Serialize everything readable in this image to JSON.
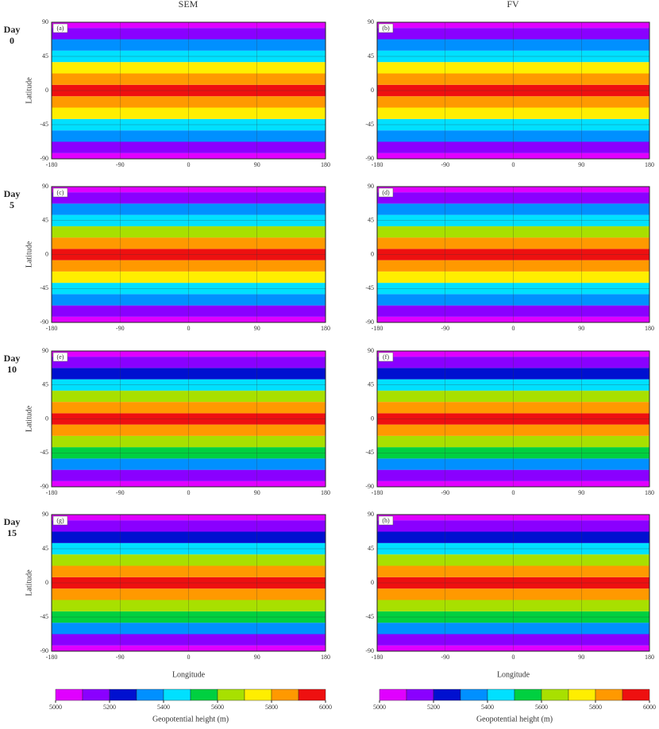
{
  "column_titles": [
    "SEM",
    "FV"
  ],
  "row_labels": [
    "Day 0",
    "Day 5",
    "Day 10",
    "Day 15"
  ],
  "chart_data": [
    {
      "type": "heatmap",
      "panel_label": "(a)",
      "ylabel": "Latitude",
      "y": [
        -90,
        -75,
        -60,
        -45,
        -30,
        -15,
        0,
        15,
        30,
        45,
        60,
        75,
        90
      ],
      "values": [
        5020,
        5120,
        5300,
        5480,
        5700,
        5880,
        5960,
        5880,
        5700,
        5480,
        5300,
        5120,
        5020
      ],
      "xlim": [
        -180,
        180
      ],
      "ylim": [
        -90,
        90
      ],
      "xticks": [
        -180,
        -90,
        0,
        90,
        180
      ],
      "yticks": [
        90,
        45,
        0,
        -45,
        -90
      ],
      "grid": true
    },
    {
      "type": "heatmap",
      "panel_label": "(b)",
      "y": [
        -90,
        -75,
        -60,
        -45,
        -30,
        -15,
        0,
        15,
        30,
        45,
        60,
        75,
        90
      ],
      "values": [
        5020,
        5120,
        5300,
        5480,
        5700,
        5880,
        5960,
        5880,
        5700,
        5480,
        5300,
        5120,
        5020
      ],
      "xlim": [
        -180,
        180
      ],
      "ylim": [
        -90,
        90
      ],
      "xticks": [
        -180,
        -90,
        0,
        90,
        180
      ],
      "yticks": [
        90,
        45,
        0,
        -45,
        -90
      ],
      "grid": true
    },
    {
      "type": "heatmap",
      "panel_label": "(c)",
      "ylabel": "Latitude",
      "y": [
        -90,
        -75,
        -60,
        -45,
        -30,
        -15,
        0,
        15,
        30,
        45,
        60,
        75,
        90
      ],
      "values": [
        5020,
        5130,
        5310,
        5490,
        5700,
        5870,
        5950,
        5870,
        5690,
        5480,
        5300,
        5130,
        5020
      ],
      "xlim": [
        -180,
        180
      ],
      "ylim": [
        -90,
        90
      ],
      "xticks": [
        -180,
        -90,
        0,
        90,
        180
      ],
      "yticks": [
        90,
        45,
        0,
        -45,
        -90
      ],
      "grid": true
    },
    {
      "type": "heatmap",
      "panel_label": "(d)",
      "y": [
        -90,
        -75,
        -60,
        -45,
        -30,
        -15,
        0,
        15,
        30,
        45,
        60,
        75,
        90
      ],
      "values": [
        5020,
        5130,
        5310,
        5490,
        5700,
        5870,
        5950,
        5870,
        5690,
        5480,
        5300,
        5130,
        5020
      ],
      "xlim": [
        -180,
        180
      ],
      "ylim": [
        -90,
        90
      ],
      "xticks": [
        -180,
        -90,
        0,
        90,
        180
      ],
      "yticks": [
        90,
        45,
        0,
        -45,
        -90
      ],
      "grid": true
    },
    {
      "type": "heatmap",
      "panel_label": "(e)",
      "ylabel": "Latitude",
      "y": [
        -90,
        -75,
        -60,
        -45,
        -30,
        -15,
        0,
        15,
        30,
        45,
        60,
        75,
        90
      ],
      "values": [
        5030,
        5140,
        5320,
        5500,
        5690,
        5860,
        5940,
        5860,
        5680,
        5470,
        5290,
        5140,
        5030
      ],
      "xlim": [
        -180,
        180
      ],
      "ylim": [
        -90,
        90
      ],
      "xticks": [
        -180,
        -90,
        0,
        90,
        180
      ],
      "yticks": [
        90,
        45,
        0,
        -45,
        -90
      ],
      "grid": true
    },
    {
      "type": "heatmap",
      "panel_label": "(f)",
      "y": [
        -90,
        -75,
        -60,
        -45,
        -30,
        -15,
        0,
        15,
        30,
        45,
        60,
        75,
        90
      ],
      "values": [
        5030,
        5140,
        5320,
        5500,
        5690,
        5860,
        5940,
        5860,
        5680,
        5470,
        5290,
        5140,
        5030
      ],
      "xlim": [
        -180,
        180
      ],
      "ylim": [
        -90,
        90
      ],
      "xticks": [
        -180,
        -90,
        0,
        90,
        180
      ],
      "yticks": [
        90,
        45,
        0,
        -45,
        -90
      ],
      "grid": true
    },
    {
      "type": "heatmap",
      "panel_label": "(g)",
      "ylabel": "Latitude",
      "xlabel": "Longitude",
      "y": [
        -90,
        -75,
        -60,
        -45,
        -30,
        -15,
        0,
        15,
        30,
        45,
        60,
        75,
        90
      ],
      "values": [
        5040,
        5160,
        5330,
        5510,
        5680,
        5850,
        5930,
        5850,
        5660,
        5460,
        5270,
        5160,
        5040
      ],
      "xlim": [
        -180,
        180
      ],
      "ylim": [
        -90,
        90
      ],
      "xticks": [
        -180,
        -90,
        0,
        90,
        180
      ],
      "yticks": [
        90,
        45,
        0,
        -45,
        -90
      ],
      "grid": true
    },
    {
      "type": "heatmap",
      "panel_label": "(h)",
      "xlabel": "Longitude",
      "y": [
        -90,
        -75,
        -60,
        -45,
        -30,
        -15,
        0,
        15,
        30,
        45,
        60,
        75,
        90
      ],
      "values": [
        5040,
        5160,
        5330,
        5510,
        5680,
        5850,
        5930,
        5850,
        5660,
        5460,
        5270,
        5160,
        5040
      ],
      "xlim": [
        -180,
        180
      ],
      "ylim": [
        -90,
        90
      ],
      "xticks": [
        -180,
        -90,
        0,
        90,
        180
      ],
      "yticks": [
        90,
        45,
        0,
        -45,
        -90
      ],
      "grid": true
    }
  ],
  "colorbars": [
    {
      "label": "Geopotential height (m)",
      "levels": [
        5000,
        5100,
        5200,
        5300,
        5400,
        5500,
        5600,
        5700,
        5800,
        5900,
        6000
      ],
      "colors": [
        "#e000ff",
        "#8a00ff",
        "#0010d0",
        "#0090ff",
        "#00e0ff",
        "#00d040",
        "#a8e000",
        "#ffee00",
        "#ff9900",
        "#ee1010"
      ],
      "ticks": [
        5000,
        5200,
        5400,
        5600,
        5800,
        6000
      ]
    },
    {
      "label": "Geopotential height (m)",
      "levels": [
        5000,
        5100,
        5200,
        5300,
        5400,
        5500,
        5600,
        5700,
        5800,
        5900,
        6000
      ],
      "colors": [
        "#e000ff",
        "#8a00ff",
        "#0010d0",
        "#0090ff",
        "#00e0ff",
        "#00d040",
        "#a8e000",
        "#ffee00",
        "#ff9900",
        "#ee1010"
      ],
      "ticks": [
        5000,
        5200,
        5400,
        5600,
        5800,
        6000
      ]
    }
  ]
}
